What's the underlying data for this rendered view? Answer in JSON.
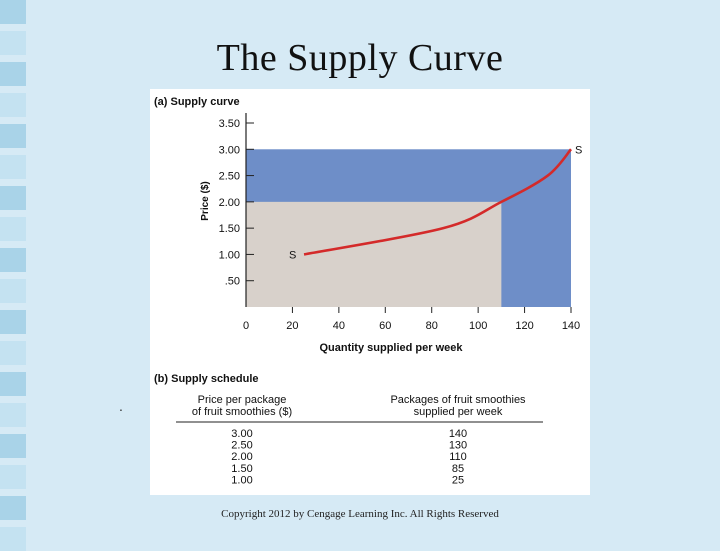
{
  "slide": {
    "title": "The Supply Curve",
    "copyright": "Copyright 2012 by Cengage Learning Inc. All Rights Reserved",
    "stray_mark": ".",
    "stripe_colors": [
      "#a9d3e8",
      "#c4e2f1"
    ]
  },
  "colors": {
    "panel_bg": "#ffffff",
    "plot_bg": "#d8d1cb",
    "shade": "#6e8ec8",
    "curve": "#d42a2a",
    "axis": "#222222"
  },
  "chart_data": {
    "type": "line",
    "panel_title": "(a) Supply curve",
    "xlabel": "Quantity supplied per week",
    "ylabel": "Price ($)",
    "xlim": [
      0,
      140
    ],
    "ylim": [
      0,
      3.5
    ],
    "x_ticks": [
      {
        "value": 0,
        "label": "0"
      },
      {
        "value": 20,
        "label": "20"
      },
      {
        "value": 40,
        "label": "40"
      },
      {
        "value": 60,
        "label": "60"
      },
      {
        "value": 80,
        "label": "80"
      },
      {
        "value": 100,
        "label": "100"
      },
      {
        "value": 120,
        "label": "120"
      },
      {
        "value": 140,
        "label": "140"
      }
    ],
    "y_ticks": [
      {
        "value": 0.5,
        "label": ".50"
      },
      {
        "value": 1.0,
        "label": "1.00"
      },
      {
        "value": 1.5,
        "label": "1.50"
      },
      {
        "value": 2.0,
        "label": "2.00"
      },
      {
        "value": 2.5,
        "label": "2.50"
      },
      {
        "value": 3.0,
        "label": "3.00"
      },
      {
        "value": 3.5,
        "label": "3.50"
      }
    ],
    "series": [
      {
        "name": "S",
        "x": [
          25,
          85,
          110,
          130,
          140
        ],
        "y": [
          1.0,
          1.5,
          2.0,
          2.5,
          3.0
        ]
      }
    ],
    "shaded_point": {
      "x": 110,
      "y": 2.0
    },
    "curve_label_start": "S",
    "curve_label_end": "S"
  },
  "schedule": {
    "title": "(b) Supply schedule",
    "col1_header": [
      "Price per package",
      "of fruit smoothies ($)"
    ],
    "col2_header": [
      "Packages of fruit smoothies",
      "supplied per week"
    ],
    "rows": [
      {
        "price": "3.00",
        "qty": "140"
      },
      {
        "price": "2.50",
        "qty": "130"
      },
      {
        "price": "2.00",
        "qty": "110"
      },
      {
        "price": "1.50",
        "qty": "85"
      },
      {
        "price": "1.00",
        "qty": "25"
      }
    ]
  }
}
